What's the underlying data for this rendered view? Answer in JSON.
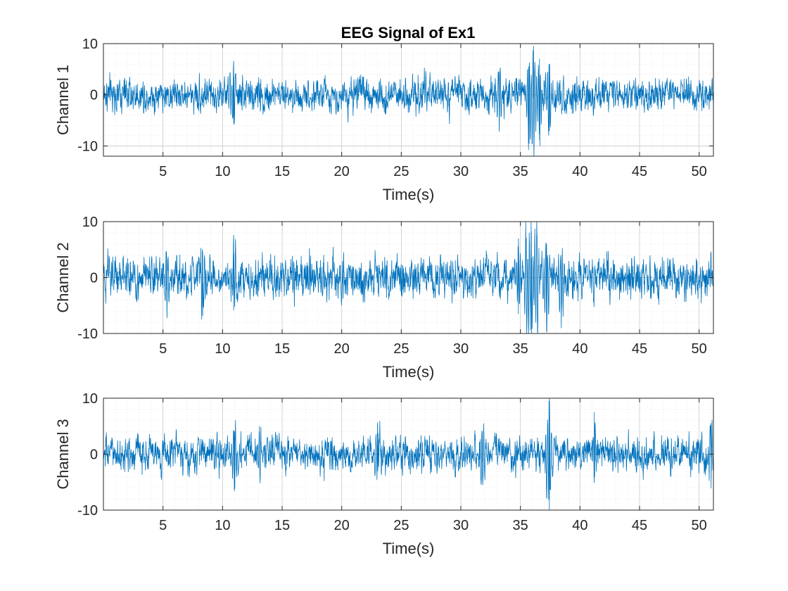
{
  "figure": {
    "title": "EEG Signal of Ex1",
    "line_color": "#0072BD",
    "grid": "major and minor, dotted",
    "box": true
  },
  "chart_data": [
    {
      "type": "line",
      "title": "EEG Signal of Ex1",
      "xlabel": "Time(s)",
      "ylabel": "Channel 1",
      "xlim": [
        0,
        51.2
      ],
      "ylim": [
        -12,
        10
      ],
      "xticks": [
        5,
        10,
        15,
        20,
        25,
        30,
        35,
        40,
        45,
        50
      ],
      "xtick_labels": [
        "5",
        "10",
        "15",
        "20",
        "25",
        "30",
        "35",
        "40",
        "45",
        "50"
      ],
      "yticks": [
        -10,
        0,
        10
      ],
      "ytick_labels": [
        "-10",
        "0",
        "10"
      ],
      "grid": true,
      "series": [
        {
          "color": "#0072BD",
          "baseline_std": 1.45,
          "events": [
            {
              "x": 10.9,
              "y_min": -5.8,
              "y_max": 5.0
            },
            {
              "x": 33.2,
              "y_min": -6.0,
              "y_max": 4.5
            },
            {
              "x": 35.7,
              "y_min": -9.5,
              "y_max": 5.5
            },
            {
              "x": 36.1,
              "y_min": -11.8,
              "y_max": 9.5
            },
            {
              "x": 36.6,
              "y_min": -10.0,
              "y_max": 7.0
            },
            {
              "x": 37.4,
              "y_min": -7.0,
              "y_max": 6.0
            }
          ]
        }
      ]
    },
    {
      "type": "line",
      "title": "",
      "xlabel": "Time(s)",
      "ylabel": "Channel 2",
      "xlim": [
        0,
        51.2
      ],
      "ylim": [
        -10,
        10
      ],
      "xticks": [
        5,
        10,
        15,
        20,
        25,
        30,
        35,
        40,
        45,
        50
      ],
      "xtick_labels": [
        "5",
        "10",
        "15",
        "20",
        "25",
        "30",
        "35",
        "40",
        "45",
        "50"
      ],
      "yticks": [
        -10,
        0,
        10
      ],
      "ytick_labels": [
        "-10",
        "0",
        "10"
      ],
      "grid": true,
      "series": [
        {
          "color": "#0072BD",
          "baseline_std": 1.6,
          "events": [
            {
              "x": 5.3,
              "y_min": -7.2,
              "y_max": 4.5
            },
            {
              "x": 8.3,
              "y_min": -6.8,
              "y_max": 5.0
            },
            {
              "x": 10.9,
              "y_min": -5.8,
              "y_max": 4.5
            },
            {
              "x": 34.8,
              "y_min": -6.5,
              "y_max": 5.5
            },
            {
              "x": 35.5,
              "y_min": -8.5,
              "y_max": 7.0
            },
            {
              "x": 35.9,
              "y_min": -10.0,
              "y_max": 8.0
            },
            {
              "x": 36.4,
              "y_min": -9.5,
              "y_max": 7.5
            },
            {
              "x": 37.2,
              "y_min": -8.0,
              "y_max": 6.0
            },
            {
              "x": 38.4,
              "y_min": -9.0,
              "y_max": 4.0
            }
          ]
        }
      ]
    },
    {
      "type": "line",
      "title": "",
      "xlabel": "Time(s)",
      "ylabel": "Channel 3",
      "xlim": [
        0,
        51.2
      ],
      "ylim": [
        -10,
        10
      ],
      "xticks": [
        5,
        10,
        15,
        20,
        25,
        30,
        35,
        40,
        45,
        50
      ],
      "xtick_labels": [
        "5",
        "10",
        "15",
        "20",
        "25",
        "30",
        "35",
        "40",
        "45",
        "50"
      ],
      "yticks": [
        -10,
        0,
        10
      ],
      "ytick_labels": [
        "-10",
        "0",
        "10"
      ],
      "grid": true,
      "series": [
        {
          "color": "#0072BD",
          "baseline_std": 1.35,
          "events": [
            {
              "x": 11.0,
              "y_min": -6.2,
              "y_max": 4.0
            },
            {
              "x": 13.1,
              "y_min": -3.5,
              "y_max": 5.0
            },
            {
              "x": 23.0,
              "y_min": -3.0,
              "y_max": 5.0
            },
            {
              "x": 31.8,
              "y_min": -5.5,
              "y_max": 4.0
            },
            {
              "x": 37.4,
              "y_min": -10.0,
              "y_max": 9.5
            },
            {
              "x": 41.2,
              "y_min": -4.0,
              "y_max": 7.5
            },
            {
              "x": 51.0,
              "y_min": -3.0,
              "y_max": 5.5
            }
          ]
        }
      ]
    }
  ]
}
